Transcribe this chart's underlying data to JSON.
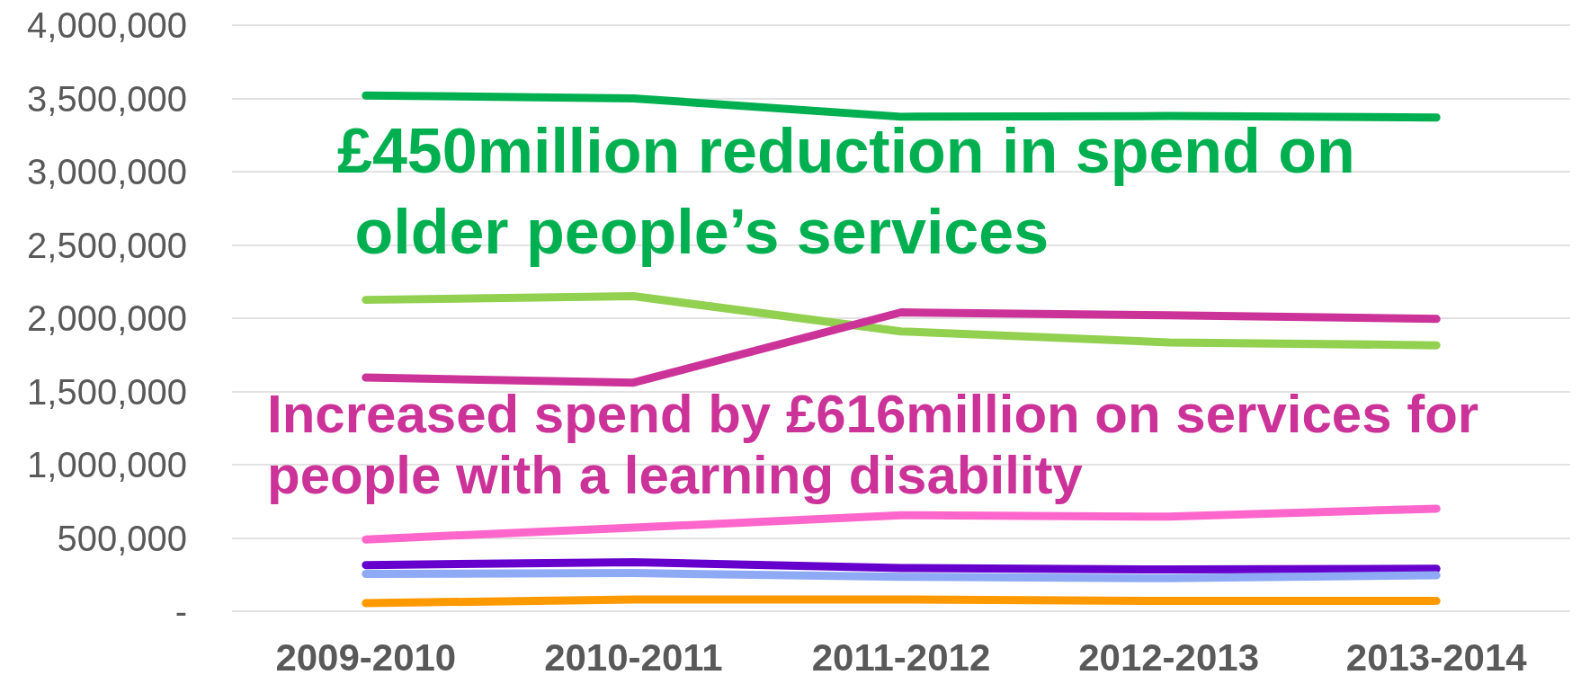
{
  "chart_data": {
    "type": "line",
    "categories": [
      "2009-2010",
      "2010-2011",
      "2011-2012",
      "2012-2013",
      "2013-2014"
    ],
    "series": [
      {
        "color": "#00b050",
        "values": [
          3520000,
          3500000,
          3375000,
          3380000,
          3370000
        ]
      },
      {
        "color": "#92d050",
        "values": [
          2125000,
          2150000,
          1910000,
          1835000,
          1815000
        ]
      },
      {
        "color": "#cc3399",
        "values": [
          1595000,
          1560000,
          2040000,
          2020000,
          1995000
        ]
      },
      {
        "color": "#ff66cc",
        "values": [
          490000,
          570000,
          655000,
          645000,
          700000
        ]
      },
      {
        "color": "#6600cc",
        "values": [
          315000,
          335000,
          295000,
          285000,
          290000
        ]
      },
      {
        "color": "#8eaaf5",
        "values": [
          255000,
          260000,
          235000,
          225000,
          245000
        ]
      },
      {
        "color": "#ff9900",
        "values": [
          55000,
          80000,
          80000,
          70000,
          70000
        ]
      }
    ],
    "ylim": [
      0,
      4000000
    ],
    "yticks": [
      {
        "value": 0,
        "label": "-"
      },
      {
        "value": 500000,
        "label": "500,000"
      },
      {
        "value": 1000000,
        "label": "1,000,000"
      },
      {
        "value": 1500000,
        "label": "1,500,000"
      },
      {
        "value": 2000000,
        "label": "2,000,000"
      },
      {
        "value": 2500000,
        "label": "2,500,000"
      },
      {
        "value": 3000000,
        "label": "3,000,000"
      },
      {
        "value": 3500000,
        "label": "3,500,000"
      },
      {
        "value": 4000000,
        "label": "4,000,000"
      }
    ],
    "grid": "y",
    "marker": "none",
    "line_style": "solid",
    "annotations": [
      "£450million reduction in spend on older people’s services",
      "Increased spend by £616million on services for people with a learning disability"
    ]
  }
}
